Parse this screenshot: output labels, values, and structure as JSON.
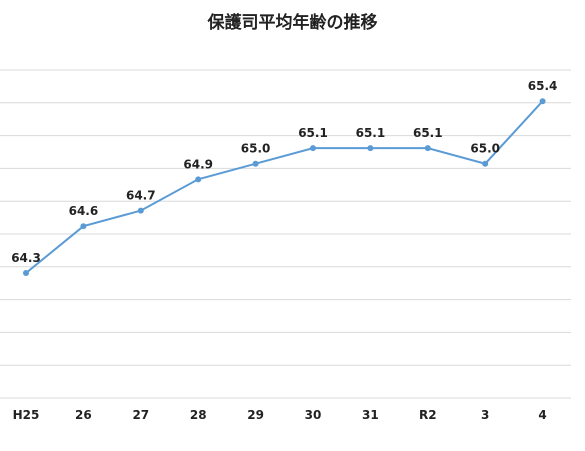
{
  "chart_data": {
    "type": "line",
    "title": "保護司平均年齢の推移",
    "categories": [
      "H25",
      "26",
      "27",
      "28",
      "29",
      "30",
      "31",
      "R2",
      "3",
      "4"
    ],
    "series": [
      {
        "values": [
          64.3,
          64.6,
          64.7,
          64.9,
          65.0,
          65.1,
          65.1,
          65.1,
          65.0,
          65.4
        ],
        "color": "#5b9bd5"
      }
    ],
    "data_labels": [
      "64.3",
      "64.6",
      "64.7",
      "64.9",
      "65.0",
      "65.1",
      "65.1",
      "65.1",
      "65.0",
      "65.4"
    ],
    "ylim": [
      63.5,
      65.6
    ],
    "grid": true,
    "legend": "none"
  }
}
